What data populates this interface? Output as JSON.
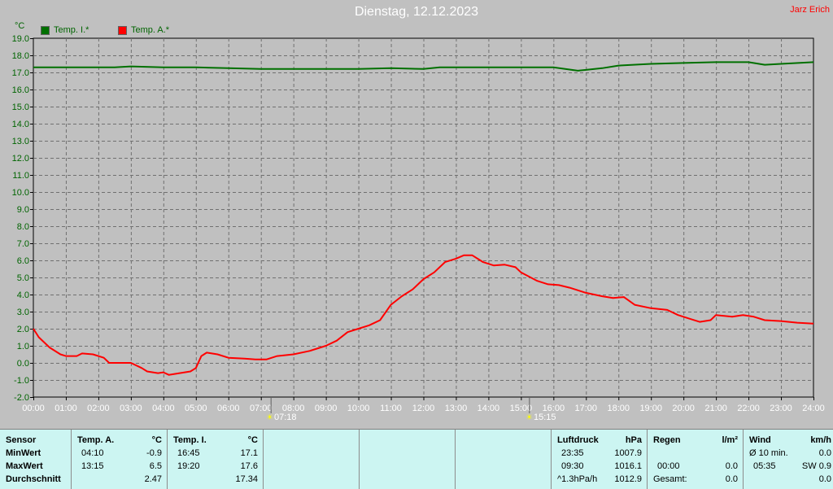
{
  "title": "Dienstag, 12.12.2023",
  "author": "Jarz Erich",
  "unit": "°C",
  "legend": [
    {
      "label": "Temp. I.*",
      "color": "#007000"
    },
    {
      "label": "Temp. A.*",
      "color": "#ff0000"
    }
  ],
  "sun": {
    "sunrise": "07:18",
    "sunset": "15:15"
  },
  "chart_data": {
    "type": "line",
    "title": "Dienstag, 12.12.2023",
    "ylabel": "°C",
    "ylim": [
      -2.0,
      19.0
    ],
    "yticks": [
      "-2.0",
      "-1.0",
      "0.0",
      "1.0",
      "2.0",
      "3.0",
      "4.0",
      "5.0",
      "6.0",
      "7.0",
      "8.0",
      "9.0",
      "10.0",
      "11.0",
      "12.0",
      "13.0",
      "14.0",
      "15.0",
      "16.0",
      "17.0",
      "18.0",
      "19.0"
    ],
    "xlim": [
      "00:00",
      "24:00"
    ],
    "xticks": [
      "00:00",
      "01:00",
      "02:00",
      "03:00",
      "04:00",
      "05:00",
      "06:00",
      "07:00",
      "08:00",
      "09:00",
      "10:00",
      "11:00",
      "12:00",
      "13:00",
      "14:00",
      "15:00",
      "16:00",
      "17:00",
      "18:00",
      "19:00",
      "20:00",
      "21:00",
      "22:00",
      "23:00",
      "24:00"
    ],
    "grid": true,
    "legend_position": "top-left",
    "series": [
      {
        "name": "Temp. I.*",
        "color": "#007000",
        "x": [
          "00:00",
          "02:30",
          "03:00",
          "04:00",
          "05:00",
          "06:00",
          "07:00",
          "08:00",
          "09:00",
          "10:00",
          "11:00",
          "12:00",
          "12:30",
          "13:00",
          "14:00",
          "15:00",
          "16:00",
          "16:45",
          "17:00",
          "17:30",
          "18:00",
          "19:00",
          "20:00",
          "21:00",
          "22:00",
          "22:30",
          "23:00",
          "24:00"
        ],
        "y": [
          17.3,
          17.3,
          17.35,
          17.3,
          17.3,
          17.25,
          17.2,
          17.2,
          17.2,
          17.2,
          17.25,
          17.2,
          17.3,
          17.3,
          17.3,
          17.3,
          17.3,
          17.1,
          17.15,
          17.25,
          17.4,
          17.5,
          17.55,
          17.6,
          17.6,
          17.45,
          17.5,
          17.6
        ]
      },
      {
        "name": "Temp. A.*",
        "color": "#ff0000",
        "x": [
          "00:00",
          "00:10",
          "00:30",
          "00:50",
          "01:00",
          "01:20",
          "01:30",
          "01:50",
          "02:10",
          "02:20",
          "02:40",
          "03:00",
          "03:20",
          "03:30",
          "03:50",
          "04:00",
          "04:10",
          "04:30",
          "04:50",
          "05:00",
          "05:10",
          "05:20",
          "05:40",
          "06:00",
          "06:30",
          "06:50",
          "07:10",
          "07:30",
          "08:00",
          "08:30",
          "09:00",
          "09:20",
          "09:40",
          "10:00",
          "10:20",
          "10:40",
          "11:00",
          "11:20",
          "11:40",
          "12:00",
          "12:20",
          "12:40",
          "13:00",
          "13:15",
          "13:30",
          "13:50",
          "14:10",
          "14:30",
          "14:50",
          "15:00",
          "15:30",
          "15:50",
          "16:10",
          "16:30",
          "17:00",
          "17:30",
          "17:50",
          "18:10",
          "18:30",
          "19:00",
          "19:30",
          "19:50",
          "20:10",
          "20:30",
          "20:50",
          "21:00",
          "21:30",
          "21:50",
          "22:10",
          "22:30",
          "23:00",
          "23:30",
          "24:00"
        ],
        "y": [
          2.0,
          1.5,
          0.9,
          0.5,
          0.4,
          0.4,
          0.55,
          0.5,
          0.3,
          0.0,
          0.0,
          0.0,
          -0.3,
          -0.5,
          -0.6,
          -0.55,
          -0.7,
          -0.6,
          -0.5,
          -0.3,
          0.4,
          0.6,
          0.5,
          0.3,
          0.25,
          0.2,
          0.2,
          0.4,
          0.5,
          0.7,
          1.0,
          1.3,
          1.8,
          2.0,
          2.2,
          2.5,
          3.4,
          3.9,
          4.3,
          4.9,
          5.3,
          5.9,
          6.1,
          6.3,
          6.3,
          5.9,
          5.7,
          5.75,
          5.6,
          5.3,
          4.8,
          4.6,
          4.55,
          4.4,
          4.1,
          3.9,
          3.8,
          3.85,
          3.4,
          3.2,
          3.1,
          2.8,
          2.6,
          2.4,
          2.5,
          2.8,
          2.7,
          2.8,
          2.7,
          2.5,
          2.45,
          2.35,
          2.3
        ]
      }
    ]
  },
  "table": {
    "headers": {
      "sensor": "Sensor",
      "temp_a": "Temp. A.",
      "unit_c1": "°C",
      "temp_i": "Temp. I.",
      "unit_c2": "°C",
      "luftdruck": "Luftdruck",
      "hpa": "hPa",
      "regen": "Regen",
      "lm2": "l/m²",
      "wind": "Wind",
      "kmh": "km/h"
    },
    "rows": [
      {
        "label": "MinWert",
        "ta_time": "04:10",
        "ta_val": "-0.9",
        "ti_time": "16:45",
        "ti_val": "17.1",
        "lp_time": "23:35",
        "lp_val": "1007.9",
        "rg_time": "",
        "rg_val": "",
        "wd_time": "Ø 10 min.",
        "wd_val": "0.0"
      },
      {
        "label": "MaxWert",
        "ta_time": "13:15",
        "ta_val": "6.5",
        "ti_time": "19:20",
        "ti_val": "17.6",
        "lp_time": "09:30",
        "lp_val": "1016.1",
        "rg_time": "00:00",
        "rg_val": "0.0",
        "wd_time": "05:35",
        "wd_val": "SW 0.9"
      },
      {
        "label": "Durchschnitt",
        "ta_time": "",
        "ta_val": "2.47",
        "ti_time": "",
        "ti_val": "17.34",
        "lp_time": "^1.3hPa/h",
        "lp_val": "1012.9",
        "rg_time": "Gesamt:",
        "rg_val": "0.0",
        "wd_time": "",
        "wd_val": "0.0"
      }
    ]
  }
}
